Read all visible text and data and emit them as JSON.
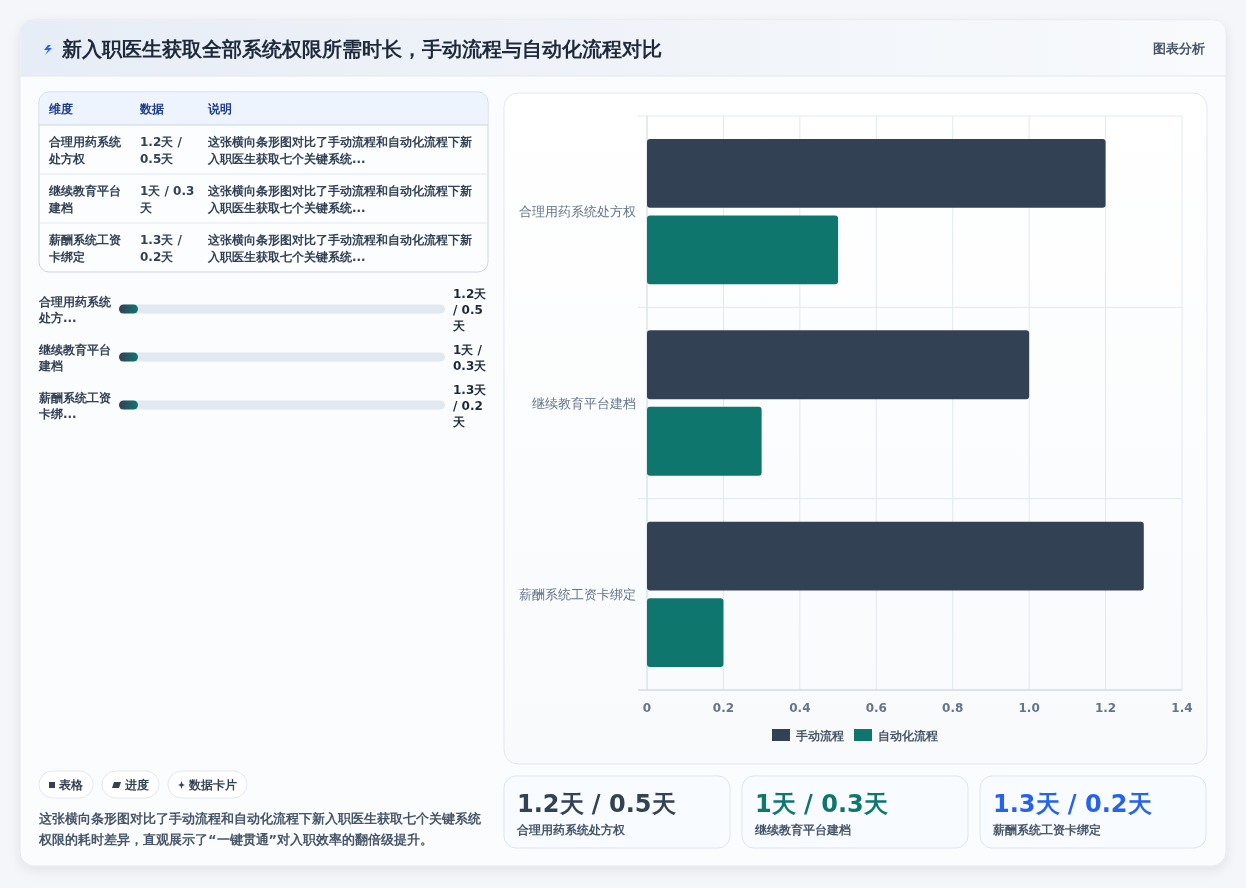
{
  "chart_data": [
    {
      "type": "other",
      "title": "新入职医生获取全部系统权限所需时长，手动流程与自动化流程对比",
      "annotations": [
        "图表分析"
      ]
    },
    {
      "type": "other",
      "categories": [
        "维度",
        "数据",
        "说明"
      ],
      "y_categories": [
        "合理用药系统处方权",
        "继续教育平台建档",
        "薪酬系统工资卡绑定"
      ],
      "cell_labels": [
        [
          "1.2天 / 0.5天",
          "这张横向条形图对比了手动流程和自动化流程下新入职医生获取七个关键系统..."
        ],
        [
          "1天 / 0.3天",
          "这张横向条形图对比了手动流程和自动化流程下新入职医生获取七个关键系统..."
        ],
        [
          "1.3天 / 0.2天",
          "这张横向条形图对比了手动流程和自动化流程下新入职医生获取七个关键系统..."
        ]
      ]
    },
    {
      "type": "other",
      "categories": [
        "合理用药系统处方...",
        "继续教育平台建档",
        "薪酬系统工资卡绑..."
      ],
      "value_labels": [
        "1.2天 / 0.5天",
        "1天 / 0.3天",
        "1.3天 / 0.2天"
      ]
    },
    {
      "type": "other",
      "categories": [
        "表格",
        "进度",
        "数据卡片"
      ],
      "annotations": [
        "这张横向条形图对比了手动流程和自动化流程下新入职医生获取七个关键系统权限的耗时差异，直观展示了“一键贯通”对入职效率的翻倍级提升。"
      ]
    },
    {
      "type": "bar",
      "orientation": "horizontal",
      "categories": [
        "合理用药系统处方权",
        "继续教育平台建档",
        "薪酬系统工资卡绑定"
      ],
      "series": [
        {
          "name": "手动流程",
          "color": "#334155",
          "values": [
            1.2,
            1,
            1.3
          ]
        },
        {
          "name": "自动化流程",
          "color": "#0f766e",
          "values": [
            0.5,
            0.3,
            0.2
          ]
        }
      ],
      "xlim": [
        0,
        1.4
      ],
      "xticks": [
        0,
        0.2,
        0.4,
        0.6,
        0.8,
        {
          "value": 1,
          "label": "1.0"
        },
        1.2,
        1.4
      ],
      "grid": true,
      "legend": "bottom"
    },
    {
      "type": "other",
      "categories": [
        "合理用药系统处方权",
        "继续教育平台建档",
        "薪酬系统工资卡绑定"
      ],
      "value_labels": [
        "1.2天 / 0.5天",
        "1天 / 0.3天",
        "1.3天 / 0.2天"
      ]
    }
  ]
}
